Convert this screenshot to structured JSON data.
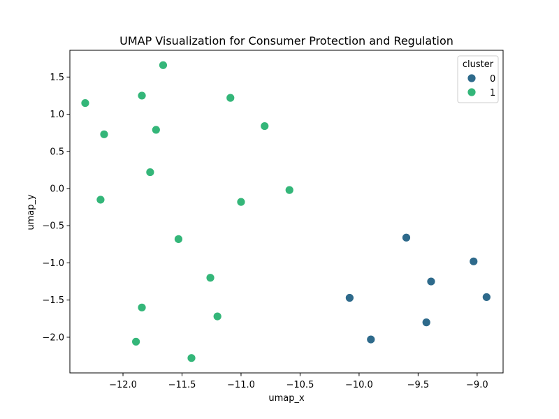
{
  "chart_data": {
    "type": "scatter",
    "title": "UMAP Visualization for Consumer Protection and Regulation",
    "xlabel": "umap_x",
    "ylabel": "umap_y",
    "xlim": [
      -12.45,
      -8.78
    ],
    "ylim": [
      -2.48,
      1.86
    ],
    "x_ticks": [
      -12.0,
      -11.5,
      -11.0,
      -10.5,
      -10.0,
      -9.5,
      -9.0
    ],
    "x_tick_labels": [
      "−12.0",
      "−11.5",
      "−11.0",
      "−10.5",
      "−10.0",
      "−9.5",
      "−9.0"
    ],
    "y_ticks": [
      -2.0,
      -1.5,
      -1.0,
      -0.5,
      0.0,
      0.5,
      1.0,
      1.5
    ],
    "y_tick_labels": [
      "−2.0",
      "−1.5",
      "−1.0",
      "−0.5",
      "0.0",
      "0.5",
      "1.0",
      "1.5"
    ],
    "grid": false,
    "legend": {
      "title": "cluster",
      "placement": "top-right"
    },
    "series": [
      {
        "name": "0",
        "color": "#2e6a8b",
        "points": [
          {
            "x": -9.6,
            "y": -0.66
          },
          {
            "x": -9.03,
            "y": -0.98
          },
          {
            "x": -9.39,
            "y": -1.25
          },
          {
            "x": -10.08,
            "y": -1.47
          },
          {
            "x": -8.92,
            "y": -1.46
          },
          {
            "x": -9.43,
            "y": -1.8
          },
          {
            "x": -9.9,
            "y": -2.03
          }
        ]
      },
      {
        "name": "1",
        "color": "#34b679",
        "points": [
          {
            "x": -11.66,
            "y": 1.66
          },
          {
            "x": -11.84,
            "y": 1.25
          },
          {
            "x": -11.09,
            "y": 1.22
          },
          {
            "x": -12.32,
            "y": 1.15
          },
          {
            "x": -10.8,
            "y": 0.84
          },
          {
            "x": -11.72,
            "y": 0.79
          },
          {
            "x": -12.16,
            "y": 0.73
          },
          {
            "x": -11.77,
            "y": 0.22
          },
          {
            "x": -10.59,
            "y": -0.02
          },
          {
            "x": -12.19,
            "y": -0.15
          },
          {
            "x": -11.0,
            "y": -0.18
          },
          {
            "x": -11.53,
            "y": -0.68
          },
          {
            "x": -11.26,
            "y": -1.2
          },
          {
            "x": -11.84,
            "y": -1.6
          },
          {
            "x": -11.2,
            "y": -1.72
          },
          {
            "x": -11.89,
            "y": -2.06
          },
          {
            "x": -11.42,
            "y": -2.28
          }
        ]
      }
    ]
  }
}
